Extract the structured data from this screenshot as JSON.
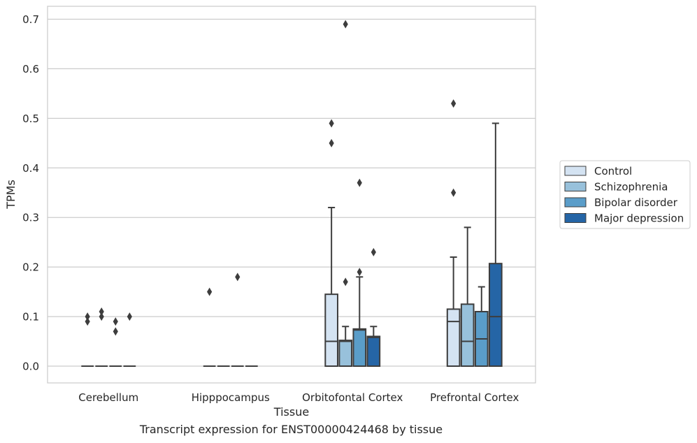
{
  "chart_data": {
    "type": "box",
    "ylabel": "TPMs",
    "xlabel": "Tissue",
    "ylim": [
      -0.034,
      0.725
    ],
    "yticks": [
      "0.0",
      "0.1",
      "0.2",
      "0.3",
      "0.4",
      "0.5",
      "0.6",
      "0.7"
    ],
    "ytick_values": [
      0,
      0.1,
      0.2,
      0.3,
      0.4,
      0.5,
      0.6,
      0.7
    ],
    "grid": "horizontal",
    "legend_position": "right",
    "categories": [
      "Cerebellum",
      "Hipppocampus",
      "Orbitofontal Cortex",
      "Prefrontal Cortex"
    ],
    "series": [
      {
        "name": "Control",
        "color": "#d4e3f2",
        "boxes": [
          {
            "q1": 0,
            "median": 0,
            "q3": 0,
            "whisker_low": 0,
            "whisker_high": 0,
            "outliers": [
              0.1,
              0.09
            ]
          },
          {
            "q1": 0,
            "median": 0,
            "q3": 0,
            "whisker_low": 0,
            "whisker_high": 0,
            "outliers": [
              0.15
            ]
          },
          {
            "q1": 0,
            "median": 0.05,
            "q3": 0.145,
            "whisker_low": 0,
            "whisker_high": 0.32,
            "outliers": [
              0.49,
              0.45
            ]
          },
          {
            "q1": 0,
            "median": 0.09,
            "q3": 0.115,
            "whisker_low": 0,
            "whisker_high": 0.22,
            "outliers": [
              0.53,
              0.35
            ]
          }
        ]
      },
      {
        "name": "Schizophrenia",
        "color": "#98c1db",
        "boxes": [
          {
            "q1": 0,
            "median": 0,
            "q3": 0,
            "whisker_low": 0,
            "whisker_high": 0,
            "outliers": [
              0.11,
              0.1
            ]
          },
          {
            "q1": 0,
            "median": 0,
            "q3": 0,
            "whisker_low": 0,
            "whisker_high": 0,
            "outliers": []
          },
          {
            "q1": 0,
            "median": 0.05,
            "q3": 0.052,
            "whisker_low": 0,
            "whisker_high": 0.08,
            "outliers": [
              0.69,
              0.17
            ]
          },
          {
            "q1": 0,
            "median": 0.05,
            "q3": 0.125,
            "whisker_low": 0,
            "whisker_high": 0.28,
            "outliers": []
          }
        ]
      },
      {
        "name": "Bipolar disorder",
        "color": "#5a9dc9",
        "boxes": [
          {
            "q1": 0,
            "median": 0,
            "q3": 0,
            "whisker_low": 0,
            "whisker_high": 0,
            "outliers": [
              0.09,
              0.07
            ]
          },
          {
            "q1": 0,
            "median": 0,
            "q3": 0,
            "whisker_low": 0,
            "whisker_high": 0,
            "outliers": [
              0.18
            ]
          },
          {
            "q1": 0,
            "median": 0.073,
            "q3": 0.075,
            "whisker_low": 0,
            "whisker_high": 0.18,
            "outliers": [
              0.37,
              0.19
            ]
          },
          {
            "q1": 0,
            "median": 0.055,
            "q3": 0.11,
            "whisker_low": 0,
            "whisker_high": 0.16,
            "outliers": []
          }
        ]
      },
      {
        "name": "Major depression",
        "color": "#2565a6",
        "boxes": [
          {
            "q1": 0,
            "median": 0,
            "q3": 0,
            "whisker_low": 0,
            "whisker_high": 0,
            "outliers": [
              0.1
            ]
          },
          {
            "q1": 0,
            "median": 0,
            "q3": 0,
            "whisker_low": 0,
            "whisker_high": 0,
            "outliers": []
          },
          {
            "q1": 0,
            "median": 0.058,
            "q3": 0.06,
            "whisker_low": 0,
            "whisker_high": 0.08,
            "outliers": [
              0.23
            ]
          },
          {
            "q1": 0,
            "median": 0.1,
            "q3": 0.207,
            "whisker_low": 0,
            "whisker_high": 0.49,
            "outliers": []
          }
        ]
      }
    ]
  },
  "caption": "Transcript expression for ENST00000424468 by tissue"
}
